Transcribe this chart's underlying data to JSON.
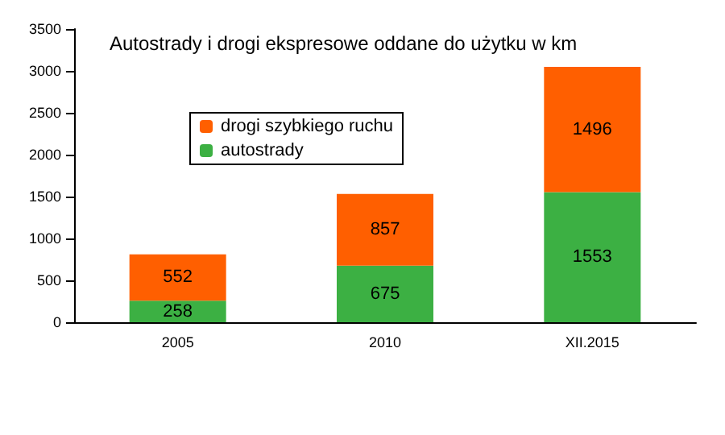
{
  "chart_data": {
    "type": "bar",
    "title": "Autostrady i drogi ekspresowe oddane do użytku w km",
    "categories": [
      "2005",
      "2010",
      "XII.2015"
    ],
    "stacked": true,
    "series": [
      {
        "name": "autostrady",
        "color": "#3cb043",
        "values": [
          258,
          675,
          1553
        ]
      },
      {
        "name": "drogi szybkiego ruchu",
        "color": "#ff5f00",
        "values": [
          552,
          857,
          1496
        ]
      }
    ],
    "ylim": [
      0,
      3500
    ],
    "yticks": [
      0,
      500,
      1000,
      1500,
      2000,
      2500,
      3000,
      3500
    ],
    "grid": false,
    "legend": "top left",
    "data_labels": true
  }
}
